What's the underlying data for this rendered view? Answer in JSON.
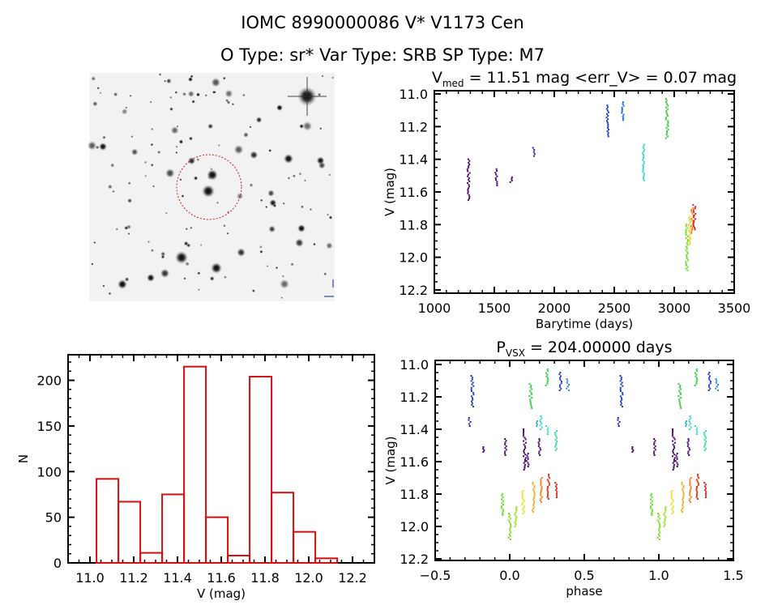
{
  "header": {
    "title": "IOMC 8990000086    V* V1173 Cen",
    "subtitle": "O Type: sr*  Var Type: SRB  SP Type: M7"
  },
  "colors": {
    "histogram": "#d01010",
    "axes": "#000000",
    "finder_circle": "#c02020"
  },
  "finder_image": {
    "type": "image",
    "description_icon": "star-field-finder-chart"
  },
  "chart_data": [
    {
      "type": "scatter",
      "title_main": "V",
      "title_sub": "med",
      "title_rest": " = 11.51 mag <err_V> = 0.07 mag",
      "xlabel": "Barytime (days)",
      "ylabel": "V (mag)",
      "xlim": [
        1000,
        3500
      ],
      "ylim": [
        12.22,
        10.98
      ],
      "y_inverted": true,
      "xticks": [
        1000,
        1500,
        2000,
        2500,
        3000,
        3500
      ],
      "yticks": [
        "11.0",
        "11.2",
        "11.4",
        "11.6",
        "11.8",
        "12.0",
        "12.2"
      ],
      "clusters": [
        {
          "t": 1285,
          "v": [
            11.4,
            11.65
          ],
          "color": "#4a0a6a"
        },
        {
          "t": 1515,
          "v": [
            11.46,
            11.56
          ],
          "color": "#4a0a6a"
        },
        {
          "t": 1640,
          "v": [
            11.51,
            11.54
          ],
          "color": "#4a0a6a"
        },
        {
          "t": 1830,
          "v": [
            11.33,
            11.38
          ],
          "color": "#2a1aa8"
        },
        {
          "t": 2445,
          "v": [
            11.07,
            11.26
          ],
          "color": "#1a3cc8"
        },
        {
          "t": 2572,
          "v": [
            11.05,
            11.16
          ],
          "color": "#1e64d8"
        },
        {
          "t": 2745,
          "v": [
            11.31,
            11.53
          ],
          "color": "#30dcd0"
        },
        {
          "t": 2940,
          "v": [
            11.03,
            11.27
          ],
          "color": "#30d040"
        },
        {
          "t": 3105,
          "v": [
            11.8,
            12.08
          ],
          "color": "#70e020"
        },
        {
          "t": 3130,
          "v": [
            11.75,
            11.92
          ],
          "color": "#f0d020"
        },
        {
          "t": 3152,
          "v": [
            11.7,
            11.85
          ],
          "color": "#f08020"
        },
        {
          "t": 3168,
          "v": [
            11.68,
            11.83
          ],
          "color": "#e02010"
        }
      ]
    },
    {
      "type": "bar",
      "xlabel": "V (mag)",
      "ylabel": "N",
      "xlim": [
        10.9,
        12.3
      ],
      "ylim": [
        0,
        228
      ],
      "xticks": [
        "11.0",
        "11.2",
        "11.4",
        "11.6",
        "11.8",
        "12.0",
        "12.2"
      ],
      "yticks": [
        0,
        50,
        100,
        150,
        200
      ],
      "bin_start": 11.03,
      "bin_width": 0.1,
      "values": [
        92,
        67,
        11,
        75,
        215,
        50,
        8,
        204,
        77,
        34,
        5
      ]
    },
    {
      "type": "scatter",
      "title_main": "P",
      "title_sub": "VSX",
      "title_rest": " = 204.00000 days",
      "xlabel": "phase",
      "ylabel": "V (mag)",
      "xlim": [
        -0.5,
        1.5
      ],
      "ylim": [
        12.21,
        10.975
      ],
      "y_inverted": true,
      "xticks": [
        "-0.5",
        "0.0",
        "0.5",
        "1.0",
        "1.5"
      ],
      "yticks": [
        "11.0",
        "11.2",
        "11.4",
        "11.6",
        "11.8",
        "12.0",
        "12.2"
      ],
      "phase_repeat": 1,
      "clusters": [
        {
          "p": -0.27,
          "v": [
            11.33,
            11.38
          ],
          "color": "#2a1aa8"
        },
        {
          "p": -0.25,
          "v": [
            11.07,
            11.26
          ],
          "color": "#1a3cc8"
        },
        {
          "p": -0.18,
          "v": [
            11.51,
            11.54
          ],
          "color": "#4a0a6a"
        },
        {
          "p": -0.03,
          "v": [
            11.46,
            11.56
          ],
          "color": "#4a0a6a"
        },
        {
          "p": 0.1,
          "v": [
            11.4,
            11.65
          ],
          "color": "#4a0a6a"
        },
        {
          "p": 0.12,
          "v": [
            11.55,
            11.63
          ],
          "color": "#4a0a6a"
        },
        {
          "p": 0.2,
          "v": [
            11.46,
            11.56
          ],
          "color": "#4a0a6a"
        },
        {
          "p": 0.14,
          "v": [
            11.12,
            11.27
          ],
          "color": "#30d040"
        },
        {
          "p": 0.25,
          "v": [
            11.03,
            11.13
          ],
          "color": "#30d040"
        },
        {
          "p": 0.34,
          "v": [
            11.05,
            11.16
          ],
          "color": "#1a3cc8"
        },
        {
          "p": 0.39,
          "v": [
            11.09,
            11.16
          ],
          "color": "#2a8ce0"
        },
        {
          "p": 0.18,
          "v": [
            11.35,
            11.38
          ],
          "color": "#30b8e0"
        },
        {
          "p": 0.21,
          "v": [
            11.32,
            11.4
          ],
          "color": "#30dcd8"
        },
        {
          "p": 0.25,
          "v": [
            11.38,
            11.43
          ],
          "color": "#30dcd0"
        },
        {
          "p": 0.31,
          "v": [
            11.41,
            11.53
          ],
          "color": "#30e0a0"
        },
        {
          "p": -0.05,
          "v": [
            11.8,
            11.93
          ],
          "color": "#60e020"
        },
        {
          "p": 0.0,
          "v": [
            11.92,
            12.08
          ],
          "color": "#80e020"
        },
        {
          "p": 0.04,
          "v": [
            11.88,
            12.0
          ],
          "color": "#a0e020"
        },
        {
          "p": 0.09,
          "v": [
            11.78,
            11.92
          ],
          "color": "#f0e020"
        },
        {
          "p": 0.16,
          "v": [
            11.73,
            11.91
          ],
          "color": "#f0b020"
        },
        {
          "p": 0.21,
          "v": [
            11.7,
            11.85
          ],
          "color": "#f08020"
        },
        {
          "p": 0.26,
          "v": [
            11.68,
            11.83
          ],
          "color": "#e83010"
        },
        {
          "p": 0.31,
          "v": [
            11.73,
            11.82
          ],
          "color": "#e02010"
        }
      ]
    }
  ]
}
